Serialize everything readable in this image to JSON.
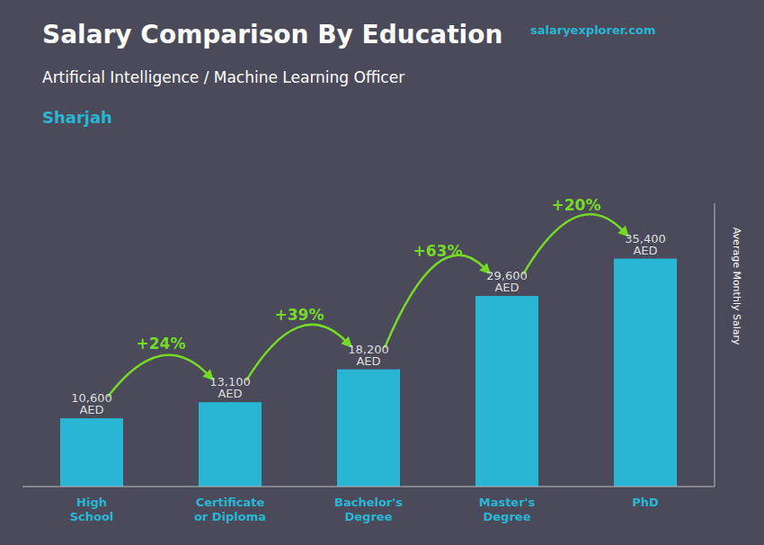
{
  "chart_data": {
    "type": "bar",
    "title": "Salary Comparison By Education",
    "subtitle": "Artificial Intelligence / Machine Learning Officer",
    "annotations": [
      "Sharjah",
      "salaryexplorer.com"
    ],
    "ylabel": "Average Monthly Salary",
    "categories": [
      "High\nSchool",
      "Certificate\nor Diploma",
      "Bachelor's\nDegree",
      "Master's\nDegree",
      "PhD"
    ],
    "values": [
      10600,
      13100,
      18200,
      29600,
      35400
    ],
    "value_labels": [
      "10,600 AED",
      "13,100 AED",
      "18,200 AED",
      "29,600 AED",
      "35,400 AED"
    ],
    "data_labels": true,
    "arrows": {
      "labels": [
        "+24%",
        "+39%",
        "+63%",
        "+20%"
      ],
      "color": "#76d926"
    },
    "color": "#29b6d4",
    "ylim": [
      0,
      44000
    ],
    "grid": false,
    "tick_labels": "x"
  }
}
